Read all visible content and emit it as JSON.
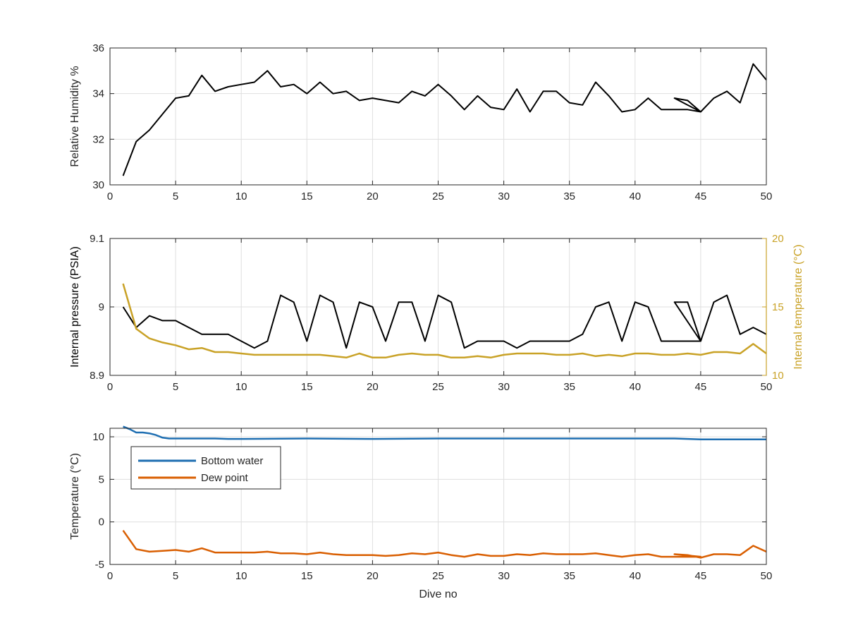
{
  "chart_data": [
    {
      "type": "line",
      "ylabel": "Relative Humidity %",
      "xlabel": "",
      "xlim": [
        0,
        50
      ],
      "ylim": [
        30,
        36
      ],
      "xticks": [
        "0",
        "5",
        "10",
        "15",
        "20",
        "25",
        "30",
        "35",
        "40",
        "45",
        "50"
      ],
      "yticks": [
        "30",
        "32",
        "34",
        "36"
      ],
      "grid": true,
      "series": [
        {
          "color": "#000000",
          "x": [
            1,
            2,
            3,
            4,
            5,
            6,
            7,
            8,
            9,
            10,
            11,
            12,
            13,
            14,
            15,
            16,
            17,
            18,
            19,
            20,
            21,
            22,
            23,
            24,
            25,
            26,
            27,
            28,
            29,
            30,
            31,
            32,
            33,
            34,
            35,
            36,
            37,
            38,
            39,
            40,
            41,
            42,
            43,
            44,
            45,
            43,
            44,
            45,
            46,
            47,
            48,
            49,
            50
          ],
          "y": [
            30.4,
            31.9,
            32.4,
            33.1,
            33.8,
            33.9,
            34.8,
            34.1,
            34.3,
            34.4,
            34.5,
            35.0,
            34.3,
            34.4,
            34.0,
            34.5,
            34.0,
            34.1,
            33.7,
            33.8,
            33.7,
            33.6,
            34.1,
            33.9,
            34.4,
            33.9,
            33.3,
            33.9,
            33.4,
            33.3,
            34.2,
            33.2,
            34.1,
            34.1,
            33.6,
            33.5,
            34.5,
            33.9,
            33.2,
            33.3,
            33.8,
            33.3,
            33.3,
            33.3,
            33.2,
            33.8,
            33.7,
            33.2,
            33.8,
            34.1,
            33.6,
            35.3,
            34.6
          ]
        }
      ]
    },
    {
      "type": "line",
      "ylabel": "Internal pressure (PSIA)",
      "y2label": "Internal temperature (°C)",
      "xlabel": "",
      "xlim": [
        0,
        50
      ],
      "ylim": [
        8.9,
        9.1
      ],
      "y2lim": [
        10,
        20
      ],
      "xticks": [
        "0",
        "5",
        "10",
        "15",
        "20",
        "25",
        "30",
        "35",
        "40",
        "45",
        "50"
      ],
      "yticks": [
        "8.9",
        "9",
        "9.1"
      ],
      "y2ticks": [
        "10",
        "15",
        "20"
      ],
      "grid": true,
      "series": [
        {
          "axis": "left",
          "color": "#000000",
          "x": [
            1,
            2,
            3,
            4,
            5,
            6,
            7,
            8,
            9,
            10,
            11,
            12,
            13,
            14,
            15,
            16,
            17,
            18,
            19,
            20,
            21,
            22,
            23,
            24,
            25,
            26,
            27,
            28,
            29,
            30,
            31,
            32,
            33,
            34,
            35,
            36,
            37,
            38,
            39,
            40,
            41,
            42,
            43,
            44,
            45,
            43,
            44,
            45,
            46,
            47,
            48,
            49,
            50
          ],
          "y": [
            9.0,
            8.97,
            8.987,
            8.98,
            8.98,
            8.97,
            8.96,
            8.96,
            8.96,
            8.95,
            8.94,
            8.95,
            9.017,
            9.007,
            8.95,
            9.017,
            9.007,
            8.94,
            9.007,
            9.0,
            8.95,
            9.007,
            9.007,
            8.95,
            9.017,
            9.007,
            8.94,
            8.95,
            8.95,
            8.95,
            8.94,
            8.95,
            8.95,
            8.95,
            8.95,
            8.96,
            9.0,
            9.007,
            8.95,
            9.007,
            9.0,
            8.95,
            8.95,
            8.95,
            8.95,
            9.007,
            9.007,
            8.95,
            9.007,
            9.017,
            8.96,
            8.97,
            8.96
          ]
        },
        {
          "axis": "right",
          "color": "#C9A227",
          "x": [
            1,
            2,
            3,
            4,
            5,
            6,
            7,
            8,
            9,
            10,
            11,
            12,
            13,
            14,
            15,
            16,
            17,
            18,
            19,
            20,
            21,
            22,
            23,
            24,
            25,
            26,
            27,
            28,
            29,
            30,
            31,
            32,
            33,
            34,
            35,
            36,
            37,
            38,
            39,
            40,
            41,
            42,
            43,
            44,
            45,
            46,
            47,
            48,
            49,
            50
          ],
          "y": [
            16.7,
            13.4,
            12.7,
            12.4,
            12.2,
            11.9,
            12.0,
            11.7,
            11.7,
            11.6,
            11.5,
            11.5,
            11.5,
            11.5,
            11.5,
            11.5,
            11.4,
            11.3,
            11.6,
            11.3,
            11.3,
            11.5,
            11.6,
            11.5,
            11.5,
            11.3,
            11.3,
            11.4,
            11.3,
            11.5,
            11.6,
            11.6,
            11.6,
            11.5,
            11.5,
            11.6,
            11.4,
            11.5,
            11.4,
            11.6,
            11.6,
            11.5,
            11.5,
            11.6,
            11.5,
            11.7,
            11.7,
            11.6,
            12.3,
            11.6
          ]
        }
      ]
    },
    {
      "type": "line",
      "ylabel": "Temperature (°C)",
      "xlabel": "Dive no",
      "xlim": [
        0,
        50
      ],
      "ylim": [
        -5,
        11
      ],
      "xticks": [
        "0",
        "5",
        "10",
        "15",
        "20",
        "25",
        "30",
        "35",
        "40",
        "45",
        "50"
      ],
      "yticks": [
        "-5",
        "0",
        "5",
        "10"
      ],
      "grid": true,
      "legend": "upper-left",
      "series": [
        {
          "name": "Bottom water",
          "color": "#1F6FB2",
          "x": [
            1,
            1.5,
            2,
            2.5,
            3,
            3.5,
            4,
            4.5,
            5,
            6,
            7,
            8,
            9,
            10,
            15,
            20,
            25,
            30,
            35,
            40,
            43,
            45,
            50
          ],
          "y": [
            11.2,
            10.9,
            10.5,
            10.5,
            10.4,
            10.2,
            9.9,
            9.8,
            9.8,
            9.8,
            9.8,
            9.8,
            9.75,
            9.75,
            9.8,
            9.75,
            9.8,
            9.8,
            9.8,
            9.8,
            9.8,
            9.7,
            9.7
          ]
        },
        {
          "name": "Dew point",
          "color": "#D95F02",
          "x": [
            1,
            2,
            3,
            4,
            5,
            6,
            7,
            8,
            9,
            10,
            11,
            12,
            13,
            14,
            15,
            16,
            17,
            18,
            19,
            20,
            21,
            22,
            23,
            24,
            25,
            26,
            27,
            28,
            29,
            30,
            31,
            32,
            33,
            34,
            35,
            36,
            37,
            38,
            39,
            40,
            41,
            42,
            43,
            44,
            45,
            43,
            44,
            45,
            46,
            47,
            48,
            49,
            50
          ],
          "y": [
            -1.0,
            -3.2,
            -3.5,
            -3.4,
            -3.3,
            -3.5,
            -3.1,
            -3.6,
            -3.6,
            -3.6,
            -3.6,
            -3.5,
            -3.7,
            -3.7,
            -3.8,
            -3.6,
            -3.8,
            -3.9,
            -3.9,
            -3.9,
            -4.0,
            -3.9,
            -3.7,
            -3.8,
            -3.6,
            -3.9,
            -4.1,
            -3.8,
            -4.0,
            -4.0,
            -3.8,
            -3.9,
            -3.7,
            -3.8,
            -3.8,
            -3.8,
            -3.7,
            -3.9,
            -4.1,
            -3.9,
            -3.8,
            -4.1,
            -4.1,
            -4.1,
            -4.1,
            -3.8,
            -3.9,
            -4.2,
            -3.8,
            -3.8,
            -3.9,
            -2.8,
            -3.5
          ]
        }
      ]
    }
  ]
}
